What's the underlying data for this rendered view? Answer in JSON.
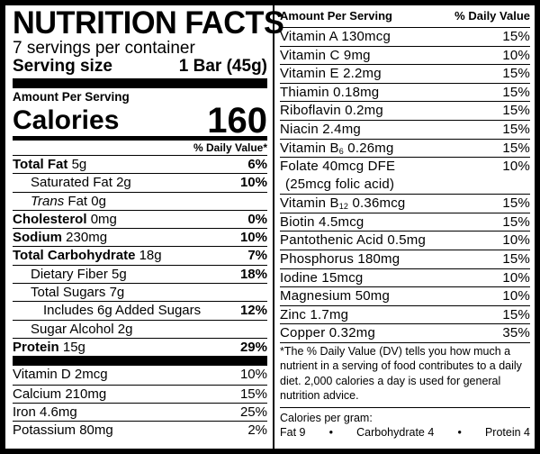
{
  "title": "NUTRITION FACTS",
  "servings_per_container": "7 servings per container",
  "serving_size": {
    "label": "Serving size",
    "value": "1 Bar (45g)"
  },
  "amount_per_serving": "Amount Per Serving",
  "calories": {
    "label": "Calories",
    "value": "160"
  },
  "dv_header": "% Daily Value*",
  "nutrients": [
    {
      "label": "Total Fat",
      "amount": "5g",
      "dv": "6%",
      "bold": true,
      "indent": 0
    },
    {
      "label": "Saturated Fat",
      "amount": "2g",
      "dv": "10%",
      "bold": false,
      "indent": 1
    },
    {
      "label": "Trans",
      "label_suffix": "Fat",
      "amount": "0g",
      "dv": "",
      "bold": false,
      "indent": 1,
      "italic_prefix": true
    },
    {
      "label": "Cholesterol",
      "amount": "0mg",
      "dv": "0%",
      "bold": true,
      "indent": 0
    },
    {
      "label": "Sodium",
      "amount": "230mg",
      "dv": "10%",
      "bold": true,
      "indent": 0
    },
    {
      "label": "Total Carbohydrate",
      "amount": "18g",
      "dv": "7%",
      "bold": true,
      "indent": 0
    },
    {
      "label": "Dietary Fiber",
      "amount": "5g",
      "dv": "18%",
      "bold": false,
      "indent": 1
    },
    {
      "label": "Total Sugars",
      "amount": "7g",
      "dv": "",
      "bold": false,
      "indent": 1
    },
    {
      "label": "Includes 6g Added Sugars",
      "amount": "",
      "dv": "12%",
      "bold": false,
      "indent": 2
    },
    {
      "label": "Sugar Alcohol",
      "amount": "2g",
      "dv": "",
      "bold": false,
      "indent": 1
    },
    {
      "label": "Protein",
      "amount": "15g",
      "dv": "29%",
      "bold": true,
      "indent": 0
    }
  ],
  "vitamins_left": [
    {
      "label": "Vitamin D 2mcg",
      "dv": "10%"
    },
    {
      "label": "Calcium 210mg",
      "dv": "15%"
    },
    {
      "label": "Iron 4.6mg",
      "dv": "25%"
    },
    {
      "label": "Potassium 80mg",
      "dv": "2%"
    }
  ],
  "right_header": {
    "left": "Amount Per Serving",
    "right": "% Daily Value"
  },
  "vitamins_right": [
    {
      "label": "Vitamin A  130mcg",
      "dv": "15%"
    },
    {
      "label": "Vitamin C  9mg",
      "dv": "10%"
    },
    {
      "label": "Vitamin E  2.2mg",
      "dv": "15%"
    },
    {
      "label": "Thiamin  0.18mg",
      "dv": "15%"
    },
    {
      "label": "Riboflavin  0.2mg",
      "dv": "15%"
    },
    {
      "label": "Niacin  2.4mg",
      "dv": "15%"
    },
    {
      "label": "Vitamin B",
      "sub": "6",
      "label_suffix": "  0.26mg",
      "dv": "15%"
    },
    {
      "label": "Folate  40mcg DFE",
      "label_line2": "(25mcg folic acid)",
      "dv": "10%"
    },
    {
      "label": "Vitamin B",
      "sub": "12",
      "label_suffix": "  0.36mcg",
      "dv": "15%"
    },
    {
      "label": "Biotin  4.5mcg",
      "dv": "15%"
    },
    {
      "label": "Pantothenic Acid  0.5mg",
      "dv": "10%"
    },
    {
      "label": "Phosphorus  180mg",
      "dv": "15%"
    },
    {
      "label": "Iodine  15mcg",
      "dv": "10%"
    },
    {
      "label": "Magnesium  50mg",
      "dv": "10%"
    },
    {
      "label": "Zinc  1.7mg",
      "dv": "15%"
    },
    {
      "label": "Copper  0.32mg",
      "dv": "35%"
    }
  ],
  "footnote": "*The % Daily Value (DV) tells you how much a nutrient in a serving of food contributes to a daily diet. 2,000 calories a day is used for general nutrition advice.",
  "calories_per_gram": {
    "label": "Calories per gram:",
    "fat": "Fat 9",
    "carb": "Carbohydrate 4",
    "protein": "Protein 4",
    "separator": "•"
  }
}
